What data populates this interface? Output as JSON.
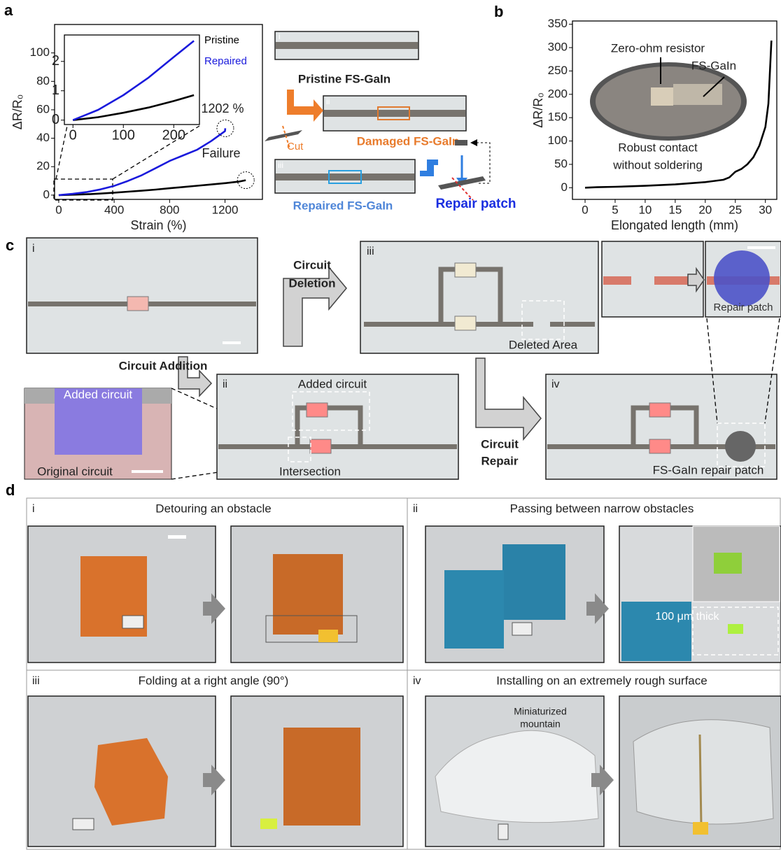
{
  "panel_labels": [
    "a",
    "b",
    "c",
    "d"
  ],
  "chart_data": [
    {
      "type": "line",
      "x_label": "Strain (%)",
      "y_label": "ΔR/R₀",
      "x": [
        0,
        100,
        200,
        300,
        400,
        500,
        600,
        700,
        800,
        900,
        1000,
        1100,
        1200,
        1202,
        1300,
        1350
      ],
      "series": [
        {
          "name": "Pristine",
          "color": "#000000",
          "values": [
            0,
            0.3,
            0.6,
            1.1,
            1.7,
            2.4,
            3.1,
            3.9,
            4.8,
            5.7,
            6.6,
            7.5,
            8.4,
            8.4,
            9.5,
            10.5
          ]
        },
        {
          "name": "Repaired",
          "color": "#1a1adc",
          "values": [
            0,
            0.9,
            2.1,
            4,
            6.5,
            10,
            14,
            19,
            24,
            28,
            32,
            38,
            45,
            47,
            null,
            null
          ]
        }
      ],
      "xlim": [
        -30,
        1470
      ],
      "xticks": [
        0,
        400,
        800,
        1200
      ],
      "ylim": [
        -3,
        120
      ],
      "yticks": [
        0,
        20,
        40,
        60,
        80,
        100
      ],
      "annotations": [
        "1202 %",
        "Failure"
      ]
    },
    {
      "type": "line",
      "x": [
        0,
        50,
        100,
        150,
        200,
        240
      ],
      "series": [
        {
          "color": "#000000",
          "values": [
            0,
            0.1,
            0.25,
            0.43,
            0.65,
            0.85
          ]
        },
        {
          "color": "#1a1adc",
          "values": [
            0,
            0.35,
            0.85,
            1.45,
            2.15,
            2.7
          ]
        }
      ],
      "xlim": [
        -17,
        251
      ],
      "xticks": [
        0,
        100,
        200
      ],
      "ylim": [
        -0.15,
        2.9
      ],
      "yticks": [
        0,
        1,
        2
      ]
    },
    {
      "type": "line",
      "x_label": "Elongated length (mm)",
      "y_label": "ΔR/R₀",
      "x": [
        0,
        2,
        5,
        10,
        15,
        20,
        23,
        24,
        25,
        26,
        27,
        28,
        29,
        30,
        30.5,
        31
      ],
      "series": [
        {
          "color": "#000000",
          "values": [
            0,
            1,
            2,
            4,
            7,
            12,
            17,
            22,
            34,
            40,
            50,
            65,
            90,
            130,
            180,
            315
          ]
        }
      ],
      "xlim": [
        -2.1,
        31.9
      ],
      "xticks": [
        0,
        5,
        10,
        15,
        20,
        25,
        30
      ],
      "ylim": [
        -25,
        357
      ],
      "yticks": [
        0,
        50,
        100,
        150,
        200,
        250,
        300,
        350
      ],
      "inset_labels": [
        "Zero-ohm resistor",
        "FS-GaIn",
        "Robust contact",
        "without soldering"
      ]
    }
  ],
  "panel_a": {
    "image_labels": [
      "i",
      "ii",
      "iii"
    ],
    "captions": [
      "Pristine FS-GaIn",
      "Damaged FS-GaIn",
      "Repaired FS-GaIn"
    ],
    "cut": "Cut",
    "repair_patch": "Repair patch"
  },
  "panel_c": {
    "image_labels": [
      "i",
      "ii",
      "iii",
      "iv"
    ],
    "deletion": [
      "Circuit",
      "Deletion"
    ],
    "addition": "Circuit Addition",
    "repair": [
      "Circuit",
      "Repair"
    ],
    "deleted_area": "Deleted Area",
    "repair_patch": "Repair patch",
    "added_circuit": "Added circuit",
    "original_circuit": "Original circuit",
    "intersection": "Intersection",
    "fs_patch": "FS-GaIn repair patch"
  },
  "panel_d": {
    "image_labels": [
      "i",
      "ii",
      "iii",
      "iv"
    ],
    "titles": [
      "Detouring an obstacle",
      "Passing between narrow obstacles",
      "Folding at a right angle (90°)",
      "Installing on an extremely rough surface"
    ],
    "thickness": "100 μm thick",
    "mountain": [
      "Miniaturized",
      "mountain"
    ]
  }
}
